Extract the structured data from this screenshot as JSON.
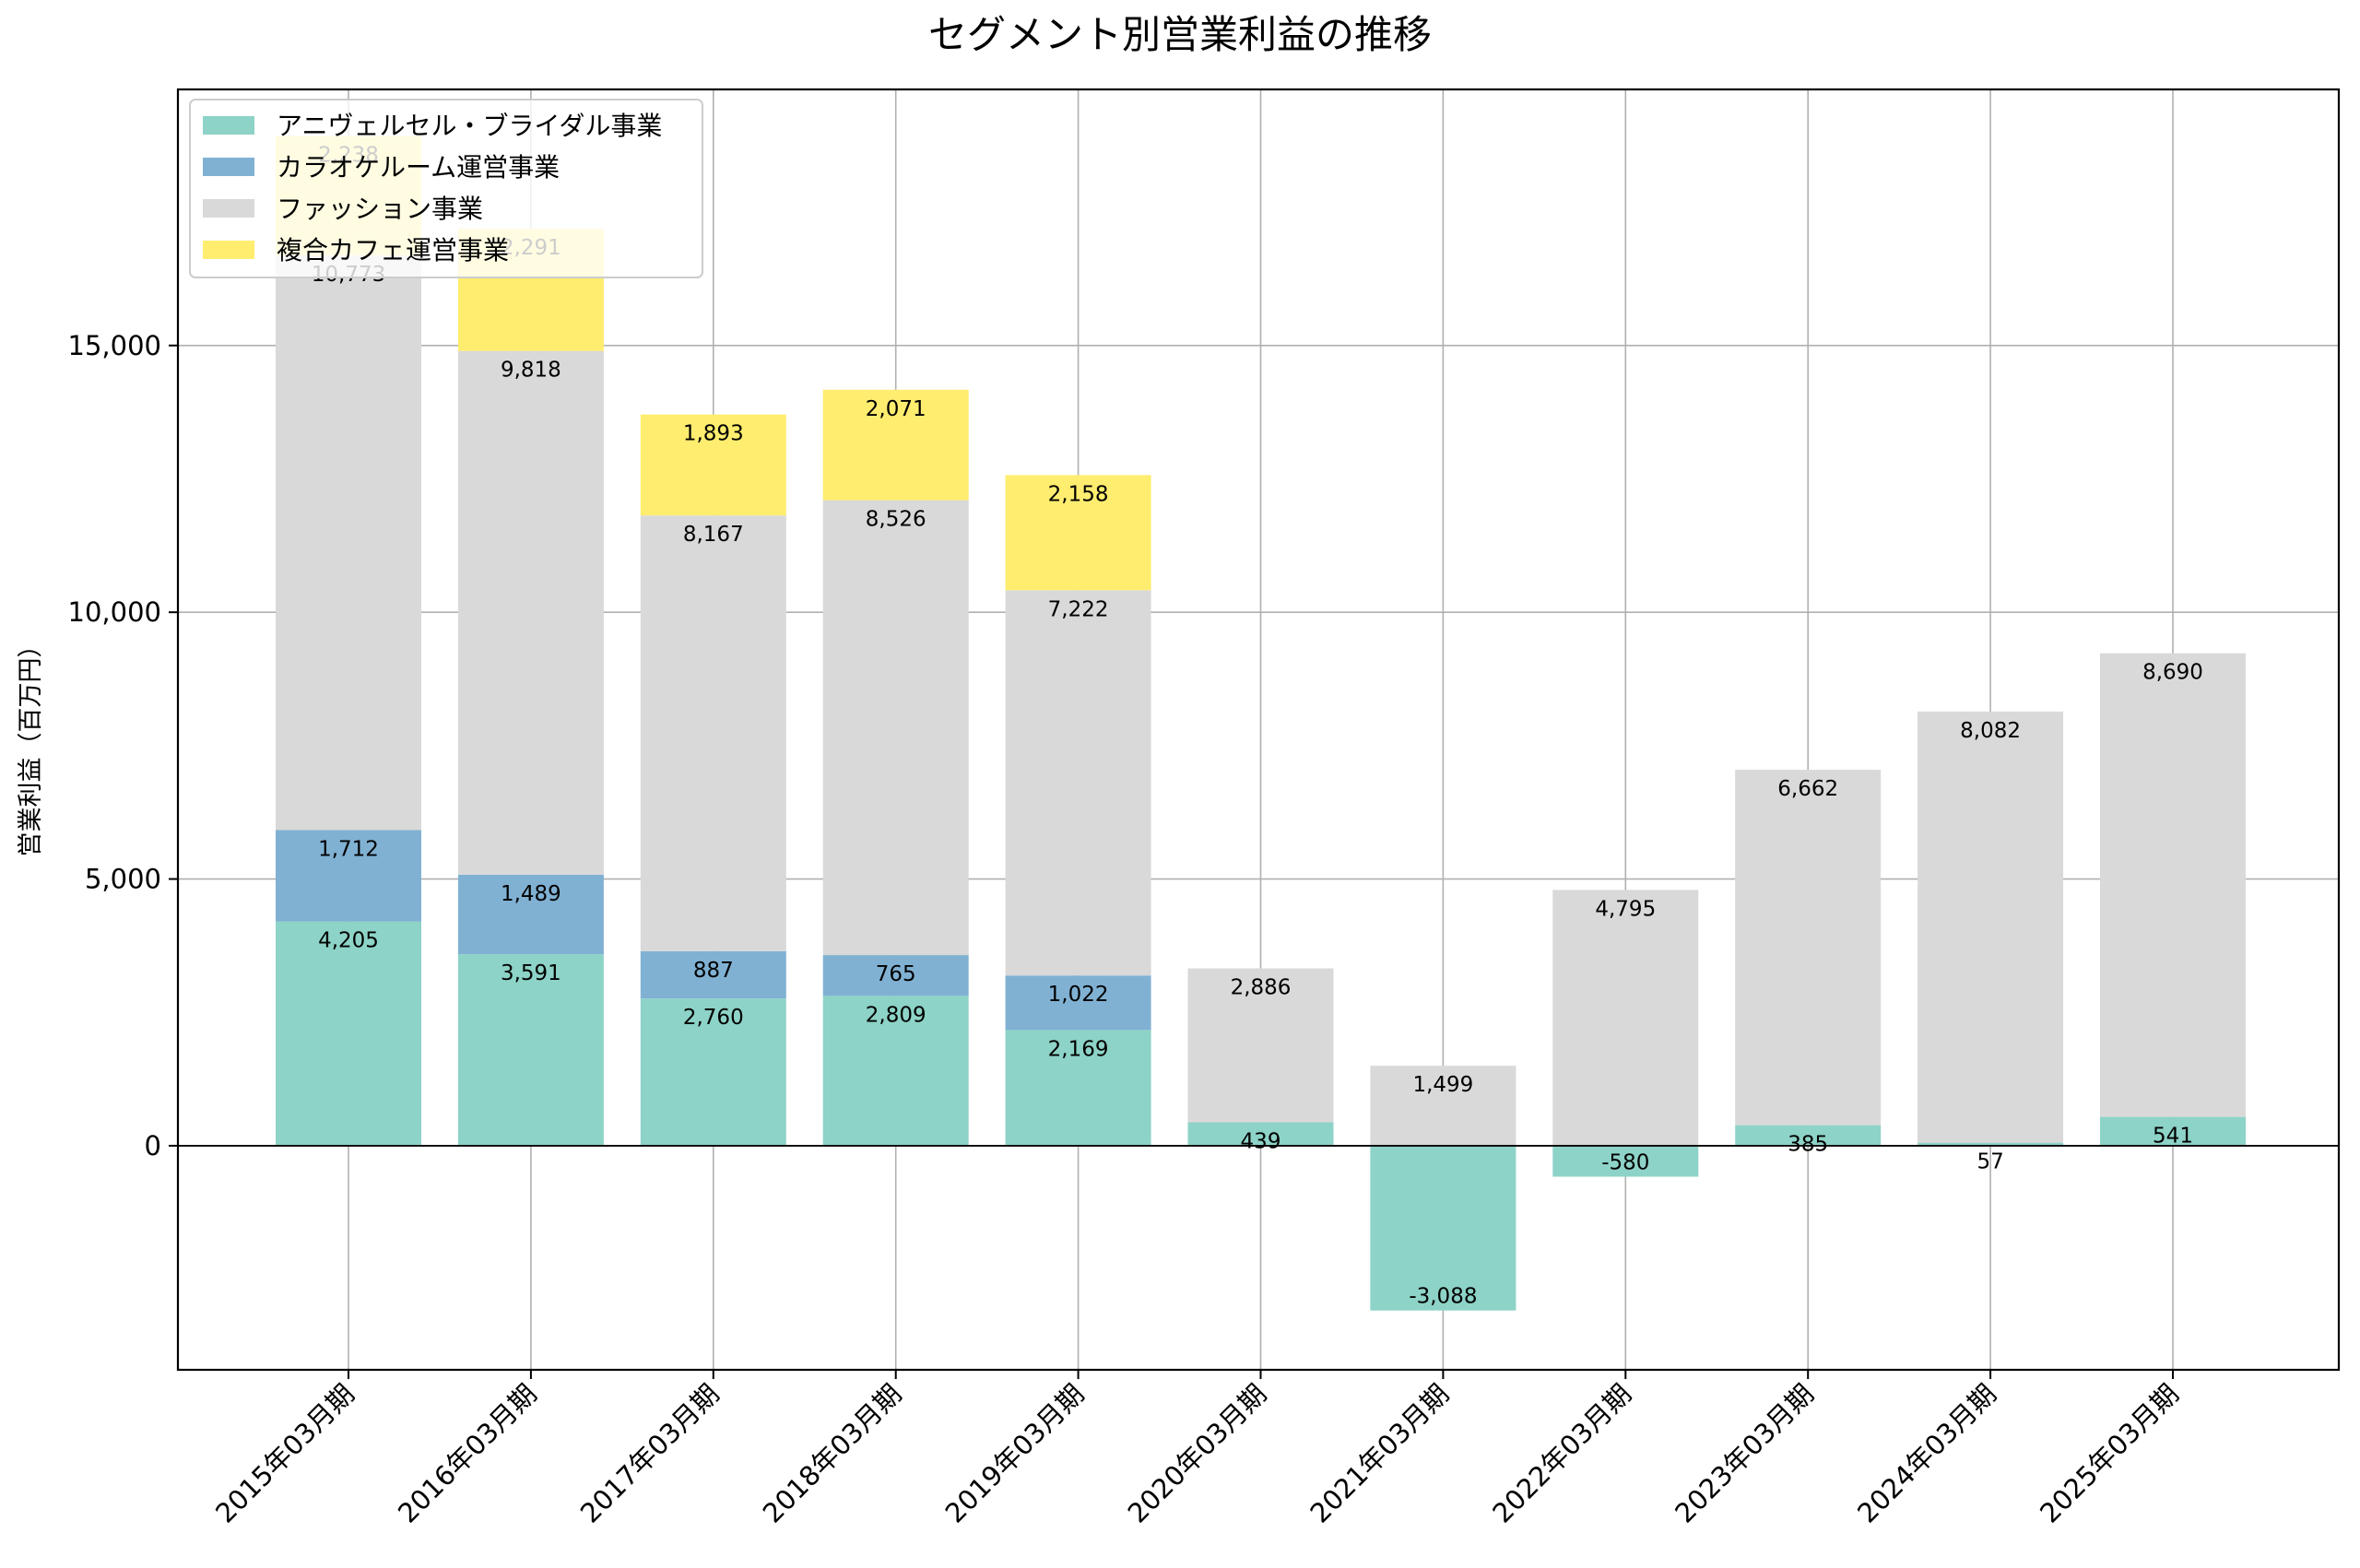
{
  "chart_data": {
    "type": "bar",
    "stacked": true,
    "title": "セグメント別営業利益の推移",
    "xlabel": "",
    "ylabel": "営業利益（百万円）",
    "ylim": [
      -4200,
      19800
    ],
    "yticks": [
      0,
      5000,
      10000,
      15000
    ],
    "ytick_labels": [
      "0",
      "5,000",
      "10,000",
      "15,000"
    ],
    "grid": true,
    "legend_position": "top-left",
    "categories": [
      "2015年03月期",
      "2016年03月期",
      "2017年03月期",
      "2018年03月期",
      "2019年03月期",
      "2020年03月期",
      "2021年03月期",
      "2022年03月期",
      "2023年03月期",
      "2024年03月期",
      "2025年03月期"
    ],
    "series": [
      {
        "name": "アニヴェルセル・ブライダル事業",
        "color": "#8dd3c7",
        "values": [
          4205,
          3591,
          2760,
          2809,
          2169,
          439,
          -3088,
          -580,
          385,
          57,
          541
        ]
      },
      {
        "name": "カラオケルーム運営事業",
        "color": "#80b1d3",
        "values": [
          1712,
          1489,
          887,
          765,
          1022,
          null,
          null,
          null,
          null,
          null,
          null
        ]
      },
      {
        "name": "ファッション事業",
        "color": "#d9d9d9",
        "values": [
          10773,
          9818,
          8167,
          8526,
          7222,
          2886,
          1499,
          4795,
          6662,
          8082,
          8690
        ]
      },
      {
        "name": "複合カフェ運営事業",
        "color": "#ffed6f",
        "values": [
          2238,
          2291,
          1893,
          2071,
          2158,
          null,
          null,
          null,
          null,
          null,
          null
        ]
      }
    ]
  }
}
